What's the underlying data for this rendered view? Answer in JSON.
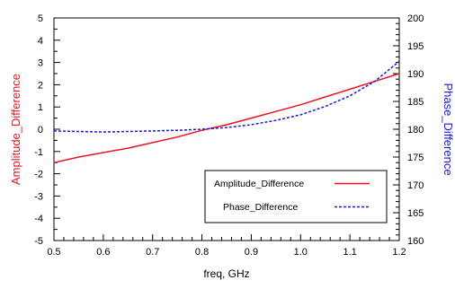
{
  "chart_data": {
    "type": "line",
    "xlabel": "freq, GHz",
    "ylabel_left": "Amplitude_Difference",
    "ylabel_right": "Phase_Difference",
    "xlim": [
      0.5,
      1.2
    ],
    "ylim_left": [
      -5,
      5
    ],
    "ylim_right": [
      160,
      200
    ],
    "x_ticks": [
      "0.5",
      "0.6",
      "0.7",
      "0.8",
      "0.9",
      "1.0",
      "1.1",
      "1.2"
    ],
    "y_left_ticks": [
      "-5",
      "-4",
      "-3",
      "-2",
      "-1",
      "0",
      "1",
      "2",
      "3",
      "4",
      "5"
    ],
    "y_right_ticks": [
      "160",
      "165",
      "170",
      "175",
      "180",
      "185",
      "190",
      "195",
      "200"
    ],
    "grid": false,
    "legend_position": "bottom-right",
    "series": [
      {
        "name": "Amplitude_Difference",
        "axis": "left",
        "color": "#e8141e",
        "style": "solid",
        "x": [
          0.5,
          0.55,
          0.6,
          0.65,
          0.7,
          0.75,
          0.8,
          0.85,
          0.9,
          0.95,
          1.0,
          1.05,
          1.1,
          1.15,
          1.2
        ],
        "y": [
          -1.5,
          -1.25,
          -1.05,
          -0.85,
          -0.6,
          -0.35,
          -0.05,
          0.2,
          0.5,
          0.8,
          1.1,
          1.45,
          1.8,
          2.15,
          2.5
        ]
      },
      {
        "name": "Phase_Difference",
        "axis": "right",
        "color": "#1a1ad4",
        "style": "dashed",
        "x": [
          0.5,
          0.55,
          0.6,
          0.65,
          0.7,
          0.75,
          0.8,
          0.85,
          0.9,
          0.95,
          1.0,
          1.05,
          1.1,
          1.15,
          1.2
        ],
        "y": [
          179.7,
          179.6,
          179.5,
          179.6,
          179.7,
          179.8,
          180.0,
          180.3,
          180.8,
          181.6,
          182.6,
          184.1,
          186.0,
          188.6,
          192.2
        ]
      }
    ]
  }
}
